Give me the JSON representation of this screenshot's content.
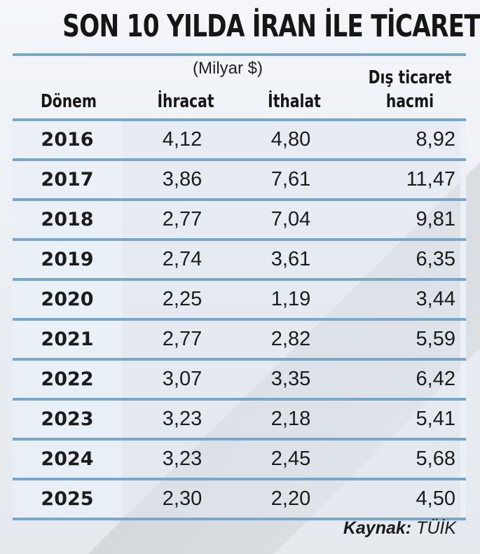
{
  "title": "SON 10 YILDA İRAN İLE TİCARET",
  "unit": "(Milyar $)",
  "headers": {
    "period": "Dönem",
    "exports": "İhracat",
    "imports": "İthalat",
    "volume_line1": "Dış ticaret",
    "volume_line2": "hacmi"
  },
  "rows": [
    {
      "year": "2016",
      "exports": "4,12",
      "imports": "4,80",
      "volume": "8,92"
    },
    {
      "year": "2017",
      "exports": "3,86",
      "imports": "7,61",
      "volume": "11,47"
    },
    {
      "year": "2018",
      "exports": "2,77",
      "imports": "7,04",
      "volume": "9,81"
    },
    {
      "year": "2019",
      "exports": "2,74",
      "imports": "3,61",
      "volume": "6,35"
    },
    {
      "year": "2020",
      "exports": "2,25",
      "imports": "1,19",
      "volume": "3,44"
    },
    {
      "year": "2021",
      "exports": "2,77",
      "imports": "2,82",
      "volume": "5,59"
    },
    {
      "year": "2022",
      "exports": "3,07",
      "imports": "3,35",
      "volume": "6,42"
    },
    {
      "year": "2023",
      "exports": "3,23",
      "imports": "2,18",
      "volume": "5,41"
    },
    {
      "year": "2024",
      "exports": "3,23",
      "imports": "2,45",
      "volume": "5,68"
    },
    {
      "year": "2025",
      "exports": "2,30",
      "imports": "2,20",
      "volume": "4,50"
    }
  ],
  "source": {
    "label": "Kaynak:",
    "value": "TÜİK"
  },
  "colors": {
    "rule": "#79a6c9",
    "text": "#1a1a1a"
  },
  "chart_data": {
    "type": "table",
    "title": "SON 10 YILDA İRAN İLE TİCARET",
    "subtitle": "(Milyar $)",
    "columns": [
      "Dönem",
      "İhracat",
      "İthalat",
      "Dış ticaret hacmi"
    ],
    "categories": [
      "2016",
      "2017",
      "2018",
      "2019",
      "2020",
      "2021",
      "2022",
      "2023",
      "2024",
      "2025"
    ],
    "series": [
      {
        "name": "İhracat",
        "values": [
          4.12,
          3.86,
          2.77,
          2.74,
          2.25,
          2.77,
          3.07,
          3.23,
          3.23,
          2.3
        ]
      },
      {
        "name": "İthalat",
        "values": [
          4.8,
          7.61,
          7.04,
          3.61,
          1.19,
          2.82,
          3.35,
          2.18,
          2.45,
          2.2
        ]
      },
      {
        "name": "Dış ticaret hacmi",
        "values": [
          8.92,
          11.47,
          9.81,
          6.35,
          3.44,
          5.59,
          6.42,
          5.41,
          5.68,
          4.5
        ]
      }
    ],
    "source": "Kaynak: TÜİK"
  }
}
